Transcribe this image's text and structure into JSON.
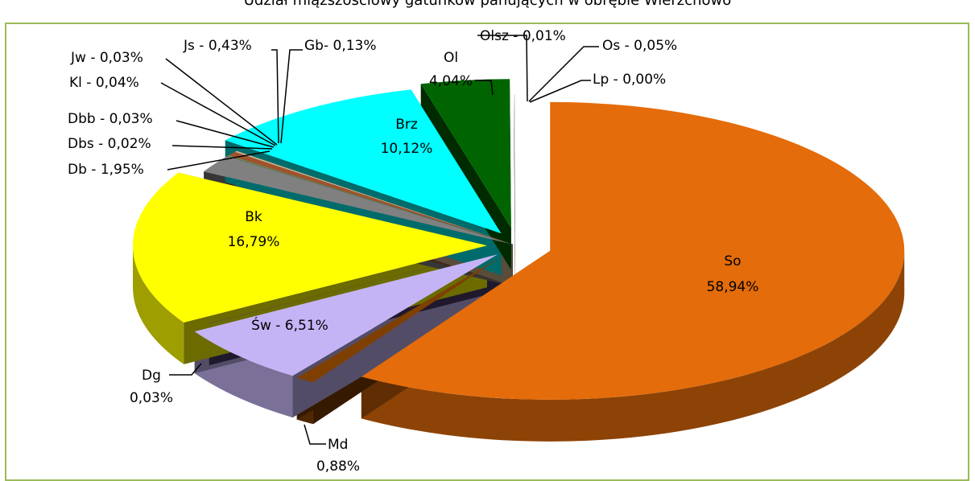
{
  "chart_data": {
    "type": "pie",
    "title": "Udział miąższościowy gatunków panujących w obrębie Wierzchowo",
    "labels": {
      "So": "So",
      "Md": "Md",
      "Sw": "Św - 6,51%",
      "Bk": "Bk",
      "Db": "Db - 1,95%",
      "Dbs": "Dbs - 0,02%",
      "Dbb": "Dbb - 0,03%",
      "Kl": "Kl - 0,04%",
      "Jw": "Jw - 0,03%",
      "Js": "Js - 0,43%",
      "Gb": "Gb- 0,13%",
      "Brz": "Brz",
      "Ol": "Ol",
      "Olsz": "Olsz - 0,01%",
      "Os": "Os - 0,05%",
      "Lp": "Lp - 0,00%",
      "Dg": "Dg"
    },
    "value_labels": {
      "So": "58,94%",
      "Md": "0,88%",
      "Bk": "16,79%",
      "Brz": "10,12%",
      "Ol": "4,04%",
      "Dg": "0,03%"
    },
    "slices": [
      {
        "name": "So",
        "value": 58.94,
        "color": "#e46c0a"
      },
      {
        "name": "Md",
        "value": 0.88,
        "color": "#7f3f00"
      },
      {
        "name": "Sw",
        "value": 6.51,
        "color": "#c5b4f5"
      },
      {
        "name": "Dg",
        "value": 0.03,
        "color": "#4b3b6b"
      },
      {
        "name": "Bk",
        "value": 16.79,
        "color": "#ffff00"
      },
      {
        "name": "Db",
        "value": 1.95,
        "color": "#808080"
      },
      {
        "name": "Dbs",
        "value": 0.02,
        "color": "#8e2a2a"
      },
      {
        "name": "Dbb",
        "value": 0.03,
        "color": "#6b8e23"
      },
      {
        "name": "Kl",
        "value": 0.04,
        "color": "#9bbb59"
      },
      {
        "name": "Jw",
        "value": 0.03,
        "color": "#c0504d"
      },
      {
        "name": "Js",
        "value": 0.43,
        "color": "#a0522d"
      },
      {
        "name": "Gb",
        "value": 0.13,
        "color": "#d2b48c"
      },
      {
        "name": "Brz",
        "value": 10.12,
        "color": "#00ffff"
      },
      {
        "name": "Ol",
        "value": 4.04,
        "color": "#006400"
      },
      {
        "name": "Olsz",
        "value": 0.01,
        "color": "#f0f0f0"
      },
      {
        "name": "Os",
        "value": 0.05,
        "color": "#e0e0e0"
      },
      {
        "name": "Lp",
        "value": 0.0,
        "color": "#ffffff"
      }
    ]
  }
}
